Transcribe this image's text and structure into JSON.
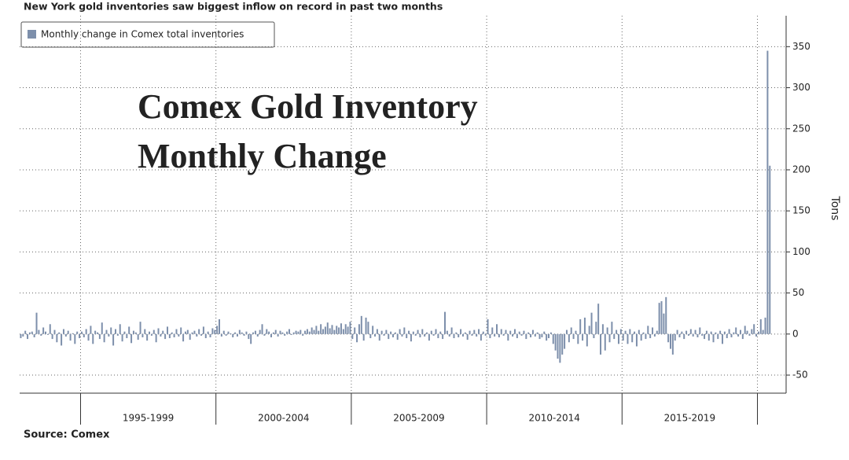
{
  "chart_data": {
    "type": "bar",
    "title": "New York gold inventories saw biggest inflow on record in past two months",
    "annotation": "Comex Gold Inventory Monthly Change",
    "y_label": "Tons",
    "source": "Source:  Comex",
    "periods": [
      "1995-1999",
      "2000-2004",
      "2005-2009",
      "2010-2014",
      "2015-2019"
    ],
    "series": [
      {
        "name": "Monthly change in Comex total inventories",
        "color": "#7d8fab",
        "values": [
          -5,
          -3,
          4,
          -6,
          2,
          3,
          -4,
          26,
          5,
          -2,
          8,
          3,
          -1,
          12,
          -6,
          5,
          -10,
          2,
          -14,
          6,
          -3,
          4,
          -8,
          1,
          -12,
          3,
          -5,
          3,
          -4,
          6,
          -8,
          10,
          -12,
          4,
          2,
          -6,
          14,
          -10,
          5,
          -3,
          8,
          -14,
          6,
          -2,
          12,
          -9,
          3,
          -5,
          9,
          -11,
          4,
          2,
          -7,
          15,
          -4,
          6,
          -8,
          3,
          -2,
          5,
          -10,
          7,
          -3,
          4,
          -6,
          9,
          -5,
          2,
          -4,
          6,
          -3,
          8,
          -9,
          3,
          5,
          -7,
          2,
          4,
          -3,
          6,
          -2,
          9,
          -5,
          3,
          -4,
          7,
          5,
          10,
          18,
          -3,
          4,
          -2,
          3,
          1,
          -4,
          2,
          -3,
          5,
          2,
          -2,
          3,
          -6,
          -12,
          2,
          4,
          -3,
          5,
          12,
          -2,
          6,
          3,
          -4,
          2,
          5,
          -3,
          4,
          2,
          -2,
          3,
          6,
          -1,
          2,
          4,
          3,
          5,
          -2,
          4,
          6,
          3,
          8,
          5,
          10,
          4,
          12,
          6,
          9,
          14,
          7,
          11,
          5,
          10,
          8,
          13,
          6,
          12,
          9,
          15,
          -6,
          8,
          -10,
          12,
          22,
          -8,
          20,
          15,
          -5,
          10,
          -3,
          6,
          -8,
          4,
          -2,
          5,
          -6,
          3,
          -4,
          2,
          -7,
          6,
          -3,
          8,
          -5,
          4,
          -9,
          3,
          -2,
          5,
          -4,
          6,
          -3,
          2,
          -8,
          4,
          -2,
          6,
          -5,
          3,
          -6,
          27,
          4,
          -3,
          8,
          -5,
          2,
          -4,
          6,
          -3,
          2,
          -7,
          4,
          -2,
          5,
          -3,
          6,
          -8,
          3,
          -2,
          18,
          -5,
          8,
          -3,
          12,
          -4,
          6,
          -2,
          5,
          -8,
          4,
          -3,
          6,
          -5,
          3,
          -2,
          4,
          -6,
          2,
          -4,
          5,
          -3,
          2,
          -6,
          -4,
          3,
          -8,
          -5,
          2,
          -12,
          -20,
          -30,
          -35,
          -25,
          -18,
          5,
          -10,
          8,
          -6,
          4,
          -12,
          18,
          -8,
          20,
          -15,
          10,
          26,
          -5,
          15,
          37,
          -25,
          12,
          -20,
          8,
          -10,
          15,
          -6,
          5,
          -12,
          6,
          -8,
          4,
          -12,
          6,
          -10,
          3,
          -15,
          5,
          -8,
          2,
          -6,
          10,
          -5,
          8,
          -3,
          4,
          38,
          40,
          25,
          45,
          -10,
          -18,
          -25,
          -8,
          5,
          -4,
          3,
          -6,
          4,
          -2,
          6,
          -3,
          5,
          -4,
          8,
          -2,
          -6,
          4,
          -8,
          3,
          -10,
          2,
          -6,
          4,
          -12,
          3,
          -5,
          6,
          -4,
          2,
          8,
          -3,
          5,
          -6,
          10,
          4,
          -2,
          6,
          12,
          -3,
          3,
          18,
          5,
          20,
          345,
          205
        ]
      }
    ],
    "ylim": [
      -72,
      380
    ],
    "yticks": [
      -50,
      0,
      50,
      100,
      150,
      200,
      250,
      300,
      350
    ],
    "grid": true
  }
}
